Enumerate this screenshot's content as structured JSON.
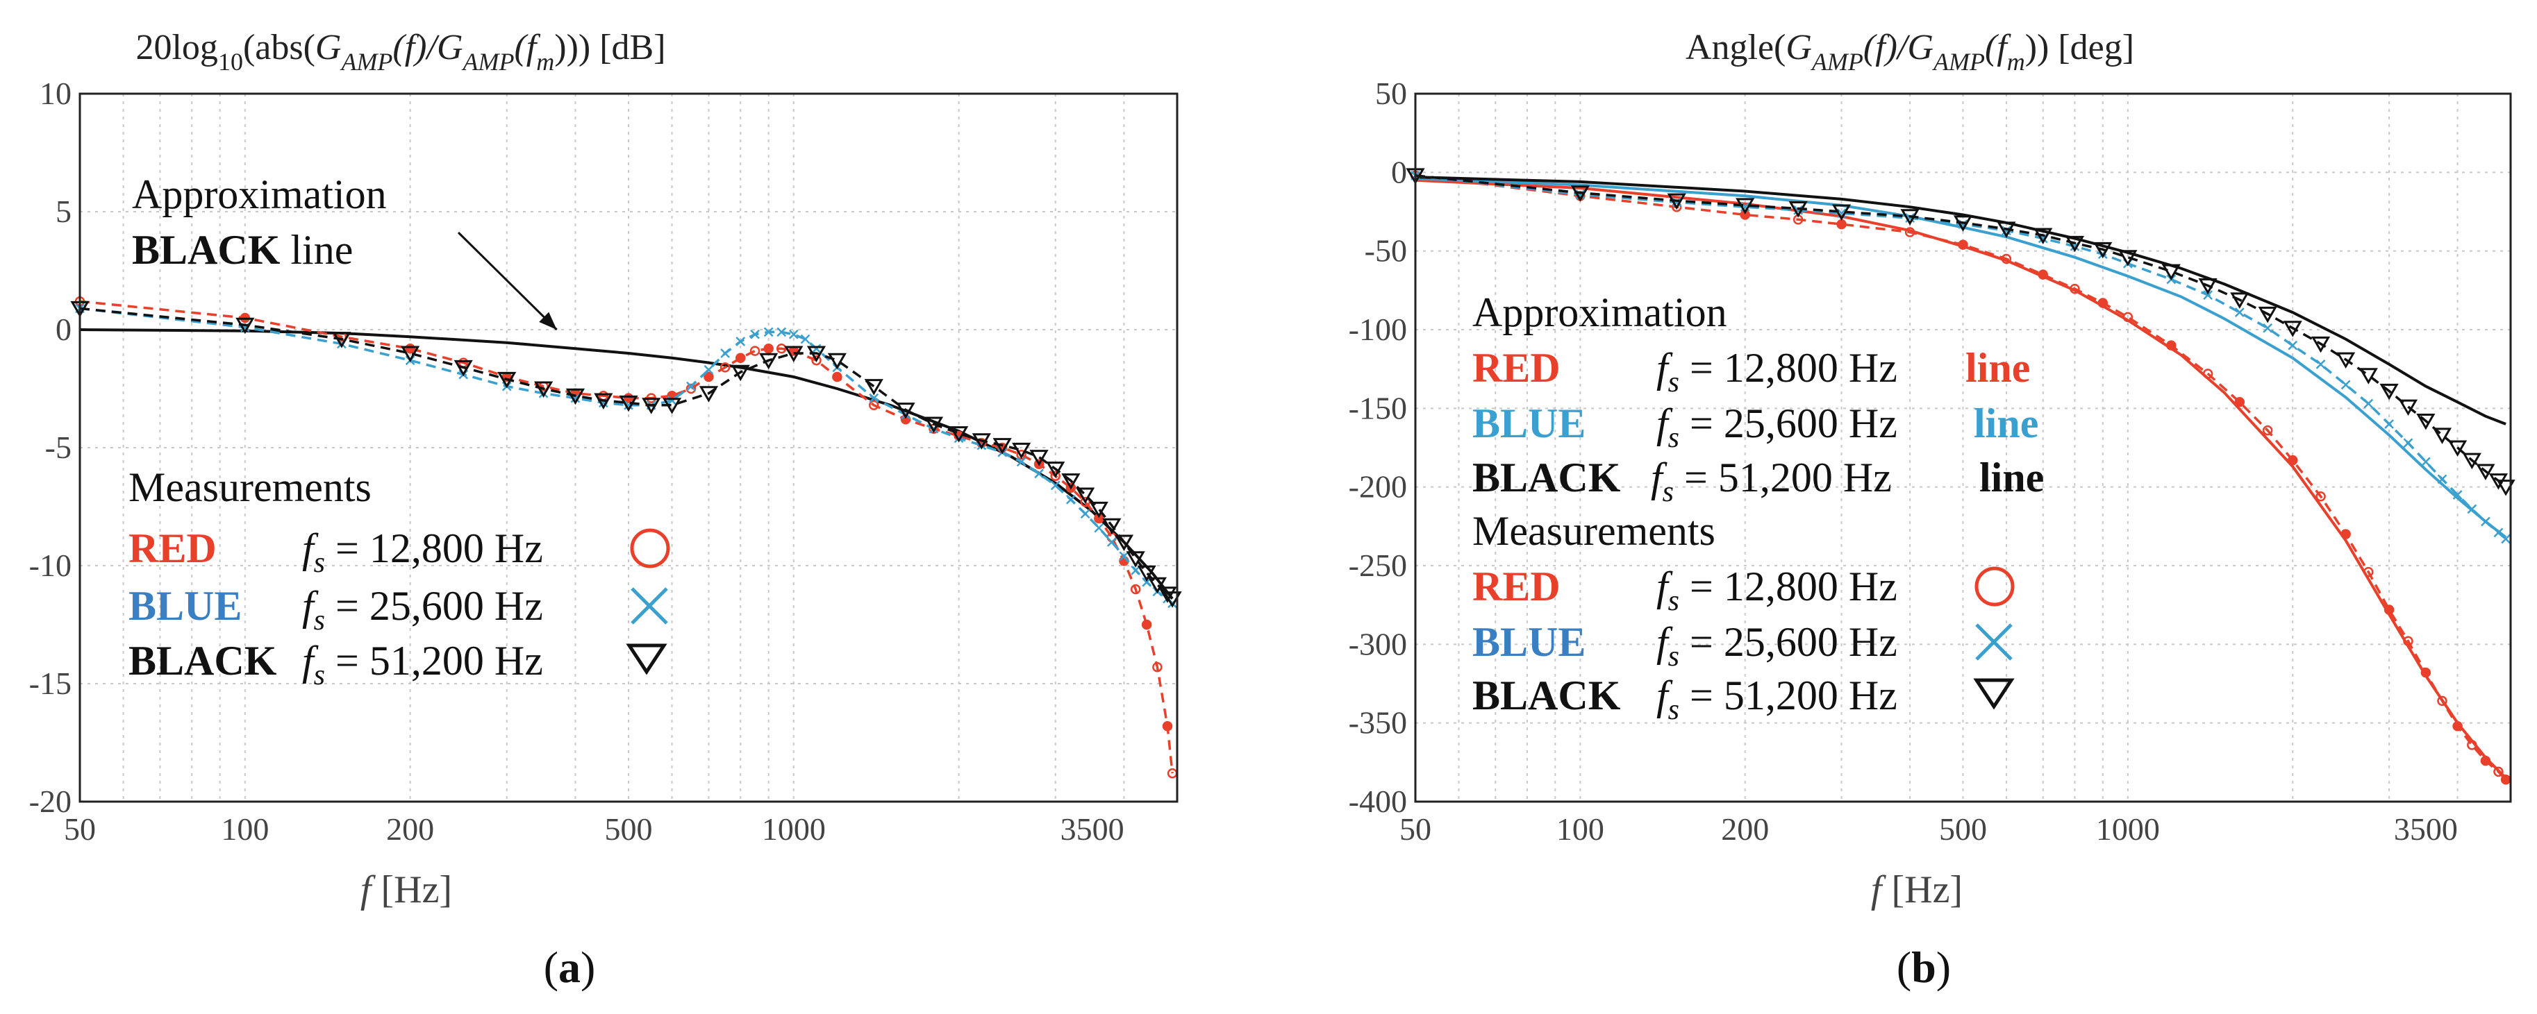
{
  "colors": {
    "red": "#e8402a",
    "blue": "#3aa0d0",
    "blue_label": "#3a7fc1",
    "black": "#111111",
    "grid": "#c8c8c8"
  },
  "chart_data": [
    {
      "id": "a",
      "type": "line",
      "xscale": "log",
      "title": {
        "prefix": "20log",
        "log_sub": "10",
        "mid1": "(abs(",
        "G": "G",
        "G_sub": "AMP",
        "f1": "(f)/",
        "G2": "G",
        "G2_sub": "AMP",
        "f2": "(f",
        "f2_sub": "m",
        "suffix": "))) [dB]"
      },
      "xlabel": {
        "f": "f",
        "unit": " [Hz]"
      },
      "xlim": [
        50,
        5000
      ],
      "ylim": [
        -20,
        10
      ],
      "x_ticks": [
        50,
        100,
        200,
        500,
        1000,
        3500
      ],
      "x_tick_labels": [
        "50",
        "100",
        "200",
        "500",
        "1000",
        "3500"
      ],
      "y_ticks": [
        10,
        5,
        0,
        -5,
        -10,
        -15,
        -20
      ],
      "y_tick_labels": [
        "10",
        "5",
        "0",
        "-5",
        "-10",
        "-15",
        "-20"
      ],
      "annotation": {
        "line1": "Approximation",
        "line2_bold": "BLACK",
        "line2_rest": " line",
        "arrow_to": [
          370,
          0.0
        ]
      },
      "legend": {
        "header": "Measurements",
        "rows": [
          {
            "name": "RED",
            "fs": "f",
            "fs_sub": "s",
            "value": " = 12,800 Hz",
            "marker": "circle",
            "color": "red"
          },
          {
            "name": "BLUE",
            "fs": "f",
            "fs_sub": "s",
            "value": " = 25,600 Hz",
            "marker": "x",
            "color": "blue"
          },
          {
            "name": "BLACK",
            "fs": "f",
            "fs_sub": "s",
            "value": " = 51,200 Hz",
            "marker": "triangle",
            "color": "black"
          }
        ]
      },
      "series": [
        {
          "name": "Approximation",
          "style": "solid",
          "color": "black",
          "x": [
            50,
            100,
            150,
            200,
            300,
            400,
            500,
            600,
            700,
            800,
            1000,
            1200,
            1500,
            2000,
            2500,
            3000,
            3500,
            4000,
            4500,
            4900
          ],
          "y": [
            0.0,
            -0.05,
            -0.15,
            -0.3,
            -0.55,
            -0.8,
            -1.0,
            -1.2,
            -1.4,
            -1.6,
            -2.0,
            -2.5,
            -3.2,
            -4.3,
            -5.4,
            -6.5,
            -7.7,
            -9.0,
            -10.3,
            -11.4
          ]
        },
        {
          "name": "RED measured",
          "style": "dashed",
          "color": "red",
          "marker": "circle",
          "x": [
            50,
            100,
            150,
            200,
            250,
            300,
            350,
            400,
            450,
            500,
            550,
            600,
            650,
            700,
            750,
            800,
            850,
            900,
            950,
            1000,
            1100,
            1200,
            1400,
            1600,
            1800,
            2000,
            2200,
            2400,
            2600,
            2800,
            3000,
            3200,
            3400,
            3600,
            3800,
            4000,
            4200,
            4400,
            4600,
            4800,
            4900
          ],
          "y": [
            1.2,
            0.5,
            -0.3,
            -0.8,
            -1.4,
            -2.0,
            -2.4,
            -2.7,
            -2.8,
            -2.9,
            -2.9,
            -2.8,
            -2.5,
            -2.0,
            -1.6,
            -1.2,
            -0.9,
            -0.8,
            -0.8,
            -0.9,
            -1.3,
            -2.0,
            -3.2,
            -3.8,
            -4.2,
            -4.5,
            -4.8,
            -5.0,
            -5.3,
            -5.7,
            -6.2,
            -6.7,
            -7.3,
            -8.0,
            -8.8,
            -9.8,
            -11.0,
            -12.5,
            -14.3,
            -16.8,
            -18.8
          ]
        },
        {
          "name": "BLUE measured",
          "style": "dashed",
          "color": "blue",
          "marker": "x",
          "x": [
            50,
            100,
            150,
            200,
            250,
            300,
            350,
            400,
            450,
            500,
            550,
            600,
            650,
            700,
            750,
            800,
            850,
            900,
            950,
            1000,
            1050,
            1100,
            1200,
            1400,
            1600,
            1800,
            2000,
            2200,
            2400,
            2600,
            2800,
            3000,
            3200,
            3400,
            3600,
            3800,
            4000,
            4200,
            4400,
            4600,
            4800,
            4900
          ],
          "y": [
            0.9,
            0.1,
            -0.6,
            -1.3,
            -1.9,
            -2.4,
            -2.7,
            -2.9,
            -3.1,
            -3.2,
            -3.2,
            -3.0,
            -2.4,
            -1.7,
            -1.0,
            -0.5,
            -0.2,
            -0.1,
            -0.1,
            -0.2,
            -0.4,
            -0.8,
            -1.6,
            -2.9,
            -3.6,
            -4.2,
            -4.6,
            -4.9,
            -5.2,
            -5.6,
            -6.1,
            -6.6,
            -7.2,
            -7.8,
            -8.4,
            -9.0,
            -9.6,
            -10.2,
            -10.7,
            -11.1,
            -11.4,
            -11.6
          ]
        },
        {
          "name": "BLACK measured",
          "style": "dashed",
          "color": "black",
          "marker": "triangle",
          "x": [
            50,
            100,
            150,
            200,
            250,
            300,
            350,
            400,
            450,
            500,
            550,
            600,
            700,
            800,
            900,
            1000,
            1100,
            1200,
            1400,
            1600,
            1800,
            2000,
            2200,
            2400,
            2600,
            2800,
            3000,
            3200,
            3400,
            3600,
            3800,
            4000,
            4200,
            4400,
            4600,
            4800,
            4900
          ],
          "y": [
            0.9,
            0.2,
            -0.4,
            -1.0,
            -1.6,
            -2.1,
            -2.5,
            -2.8,
            -3.0,
            -3.1,
            -3.2,
            -3.2,
            -2.7,
            -1.8,
            -1.3,
            -1.0,
            -1.0,
            -1.3,
            -2.4,
            -3.4,
            -4.0,
            -4.4,
            -4.7,
            -4.9,
            -5.1,
            -5.4,
            -5.9,
            -6.4,
            -7.0,
            -7.6,
            -8.3,
            -9.0,
            -9.7,
            -10.3,
            -10.8,
            -11.2,
            -11.4
          ]
        }
      ]
    },
    {
      "id": "b",
      "type": "line",
      "xscale": "log",
      "title": {
        "prefix": "Angle(",
        "G": "G",
        "G_sub": "AMP",
        "f1": "(f)/",
        "G2": "G",
        "G2_sub": "AMP",
        "f2": "(f",
        "f2_sub": "m",
        "suffix": ")) [deg]"
      },
      "xlabel": {
        "f": "f",
        "unit": " [Hz]"
      },
      "xlim": [
        50,
        5000
      ],
      "ylim": [
        -400,
        50
      ],
      "x_ticks": [
        50,
        100,
        200,
        500,
        1000,
        3500
      ],
      "x_tick_labels": [
        "50",
        "100",
        "200",
        "500",
        "1000",
        "3500"
      ],
      "y_ticks": [
        50,
        0,
        -50,
        -100,
        -150,
        -200,
        -250,
        -300,
        -350,
        -400
      ],
      "y_tick_labels": [
        "50",
        "0",
        "-50",
        "-100",
        "-150",
        "-200",
        "-250",
        "-300",
        "-350",
        "-400"
      ],
      "approx_legend": {
        "header": "Approximation",
        "rows": [
          {
            "name": "RED",
            "fs": "f",
            "fs_sub": "s",
            "value": " = 12,800 Hz",
            "tag": "line",
            "color": "red"
          },
          {
            "name": "BLUE",
            "fs": "f",
            "fs_sub": "s",
            "value": " = 25,600 Hz",
            "tag": "line",
            "color": "blue"
          },
          {
            "name": "BLACK",
            "fs": "f",
            "fs_sub": "s",
            "value": " = 51,200 Hz",
            "tag": "line",
            "color": "black"
          }
        ]
      },
      "legend": {
        "header": "Measurements",
        "rows": [
          {
            "name": "RED",
            "fs": "f",
            "fs_sub": "s",
            "value": " = 12,800 Hz",
            "marker": "circle",
            "color": "red"
          },
          {
            "name": "BLUE",
            "fs": "f",
            "fs_sub": "s",
            "value": " = 25,600 Hz",
            "marker": "x",
            "color": "blue"
          },
          {
            "name": "BLACK",
            "fs": "f",
            "fs_sub": "s",
            "value": " = 51,200 Hz",
            "marker": "triangle",
            "color": "black"
          }
        ]
      },
      "series": [
        {
          "name": "RED approximation",
          "style": "solid",
          "color": "red",
          "x": [
            50,
            100,
            200,
            300,
            400,
            500,
            600,
            800,
            1000,
            1250,
            1500,
            2000,
            2500,
            3000,
            3500,
            4000,
            4500,
            4900
          ],
          "y": [
            -5,
            -10,
            -20,
            -28,
            -37,
            -47,
            -56,
            -75,
            -94,
            -116,
            -140,
            -187,
            -234,
            -281,
            -320,
            -350,
            -372,
            -385
          ]
        },
        {
          "name": "BLUE approximation",
          "style": "solid",
          "color": "blue",
          "x": [
            50,
            100,
            200,
            300,
            400,
            500,
            600,
            800,
            1000,
            1250,
            1500,
            2000,
            2500,
            3000,
            3500,
            4000,
            4500,
            4900
          ],
          "y": [
            -4,
            -8,
            -15,
            -21,
            -28,
            -35,
            -41,
            -54,
            -66,
            -79,
            -93,
            -118,
            -143,
            -167,
            -189,
            -207,
            -222,
            -232
          ]
        },
        {
          "name": "BLACK approximation",
          "style": "solid",
          "color": "black",
          "x": [
            50,
            100,
            200,
            300,
            400,
            500,
            600,
            800,
            1000,
            1250,
            1500,
            2000,
            2500,
            3000,
            3500,
            4000,
            4500,
            4900
          ],
          "y": [
            -3,
            -6,
            -12,
            -17,
            -22,
            -27,
            -32,
            -42,
            -51,
            -61,
            -71,
            -89,
            -106,
            -122,
            -136,
            -146,
            -155,
            -160
          ]
        },
        {
          "name": "RED measured",
          "style": "dashed",
          "color": "red",
          "marker": "circle",
          "x": [
            50,
            100,
            150,
            200,
            250,
            300,
            400,
            500,
            600,
            700,
            800,
            900,
            1000,
            1200,
            1400,
            1600,
            1800,
            2000,
            2250,
            2500,
            2750,
            3000,
            3250,
            3500,
            3750,
            4000,
            4250,
            4500,
            4750,
            4900
          ],
          "y": [
            -2,
            -15,
            -22,
            -27,
            -30,
            -33,
            -38,
            -46,
            -55,
            -65,
            -74,
            -83,
            -92,
            -110,
            -128,
            -146,
            -164,
            -183,
            -206,
            -230,
            -254,
            -278,
            -298,
            -318,
            -336,
            -352,
            -364,
            -374,
            -381,
            -386
          ]
        },
        {
          "name": "BLUE measured",
          "style": "dashed",
          "color": "blue",
          "marker": "x",
          "x": [
            50,
            100,
            150,
            200,
            250,
            300,
            400,
            500,
            600,
            700,
            800,
            900,
            1000,
            1200,
            1400,
            1600,
            1800,
            2000,
            2250,
            2500,
            2750,
            3000,
            3250,
            3500,
            3750,
            4000,
            4250,
            4500,
            4750,
            4900
          ],
          "y": [
            -2,
            -14,
            -19,
            -22,
            -24,
            -26,
            -29,
            -33,
            -37,
            -42,
            -47,
            -52,
            -58,
            -68,
            -78,
            -89,
            -99,
            -110,
            -122,
            -135,
            -147,
            -160,
            -172,
            -184,
            -195,
            -205,
            -214,
            -222,
            -229,
            -233
          ]
        },
        {
          "name": "BLACK measured",
          "style": "dashed",
          "color": "black",
          "marker": "triangle",
          "x": [
            50,
            100,
            150,
            200,
            250,
            300,
            400,
            500,
            600,
            700,
            800,
            900,
            1000,
            1200,
            1400,
            1600,
            1800,
            2000,
            2250,
            2500,
            2750,
            3000,
            3250,
            3500,
            3750,
            4000,
            4250,
            4500,
            4750,
            4900
          ],
          "y": [
            -2,
            -13,
            -18,
            -21,
            -23,
            -25,
            -28,
            -32,
            -36,
            -40,
            -45,
            -49,
            -54,
            -63,
            -72,
            -81,
            -90,
            -99,
            -109,
            -119,
            -129,
            -139,
            -149,
            -158,
            -167,
            -175,
            -183,
            -190,
            -196,
            -200
          ]
        }
      ]
    }
  ],
  "subfigure_labels": {
    "a": "(a)",
    "b": "(b)"
  }
}
